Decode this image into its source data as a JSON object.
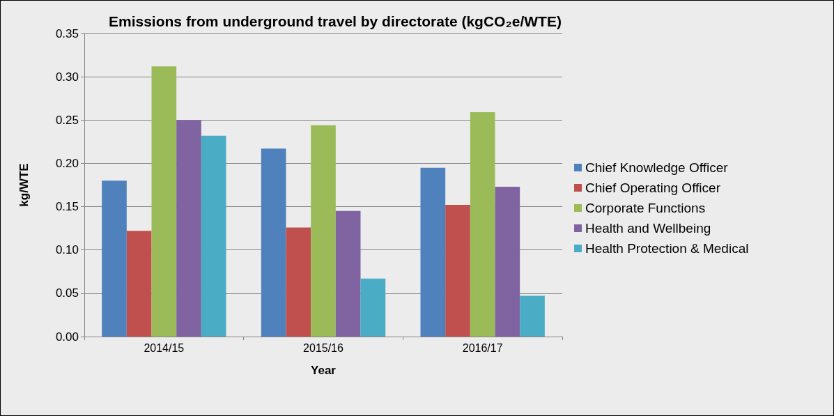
{
  "chart_data": {
    "type": "bar",
    "title": "Emissions from underground travel by directorate (kgCO₂e/WTE)",
    "xlabel": "Year",
    "ylabel": "kg/WTE",
    "categories": [
      "2014/15",
      "2015/16",
      "2016/17"
    ],
    "series": [
      {
        "name": "Chief Knowledge Officer",
        "color": "#4f81bd",
        "values": [
          0.18,
          0.217,
          0.195
        ]
      },
      {
        "name": "Chief Operating Officer",
        "color": "#c0504d",
        "values": [
          0.122,
          0.126,
          0.152
        ]
      },
      {
        "name": "Corporate Functions",
        "color": "#9bbb59",
        "values": [
          0.312,
          0.244,
          0.259
        ]
      },
      {
        "name": "Health and Wellbeing",
        "color": "#8064a2",
        "values": [
          0.25,
          0.145,
          0.173
        ]
      },
      {
        "name": "Health Protection & Medical",
        "color": "#4bacc6",
        "values": [
          0.232,
          0.067,
          0.047
        ]
      }
    ],
    "ylim": [
      0,
      0.35
    ],
    "yticks": [
      {
        "value": 0,
        "label": "0.00"
      },
      {
        "value": 0.05,
        "label": "0.05"
      },
      {
        "value": 0.1,
        "label": "0.10"
      },
      {
        "value": 0.15,
        "label": "0.15"
      },
      {
        "value": 0.2,
        "label": "0.20"
      },
      {
        "value": 0.25,
        "label": "0.25"
      },
      {
        "value": 0.3,
        "label": "0.30"
      },
      {
        "value": 0.35,
        "label": "0.35"
      }
    ],
    "grid": "y",
    "legend": "right"
  }
}
